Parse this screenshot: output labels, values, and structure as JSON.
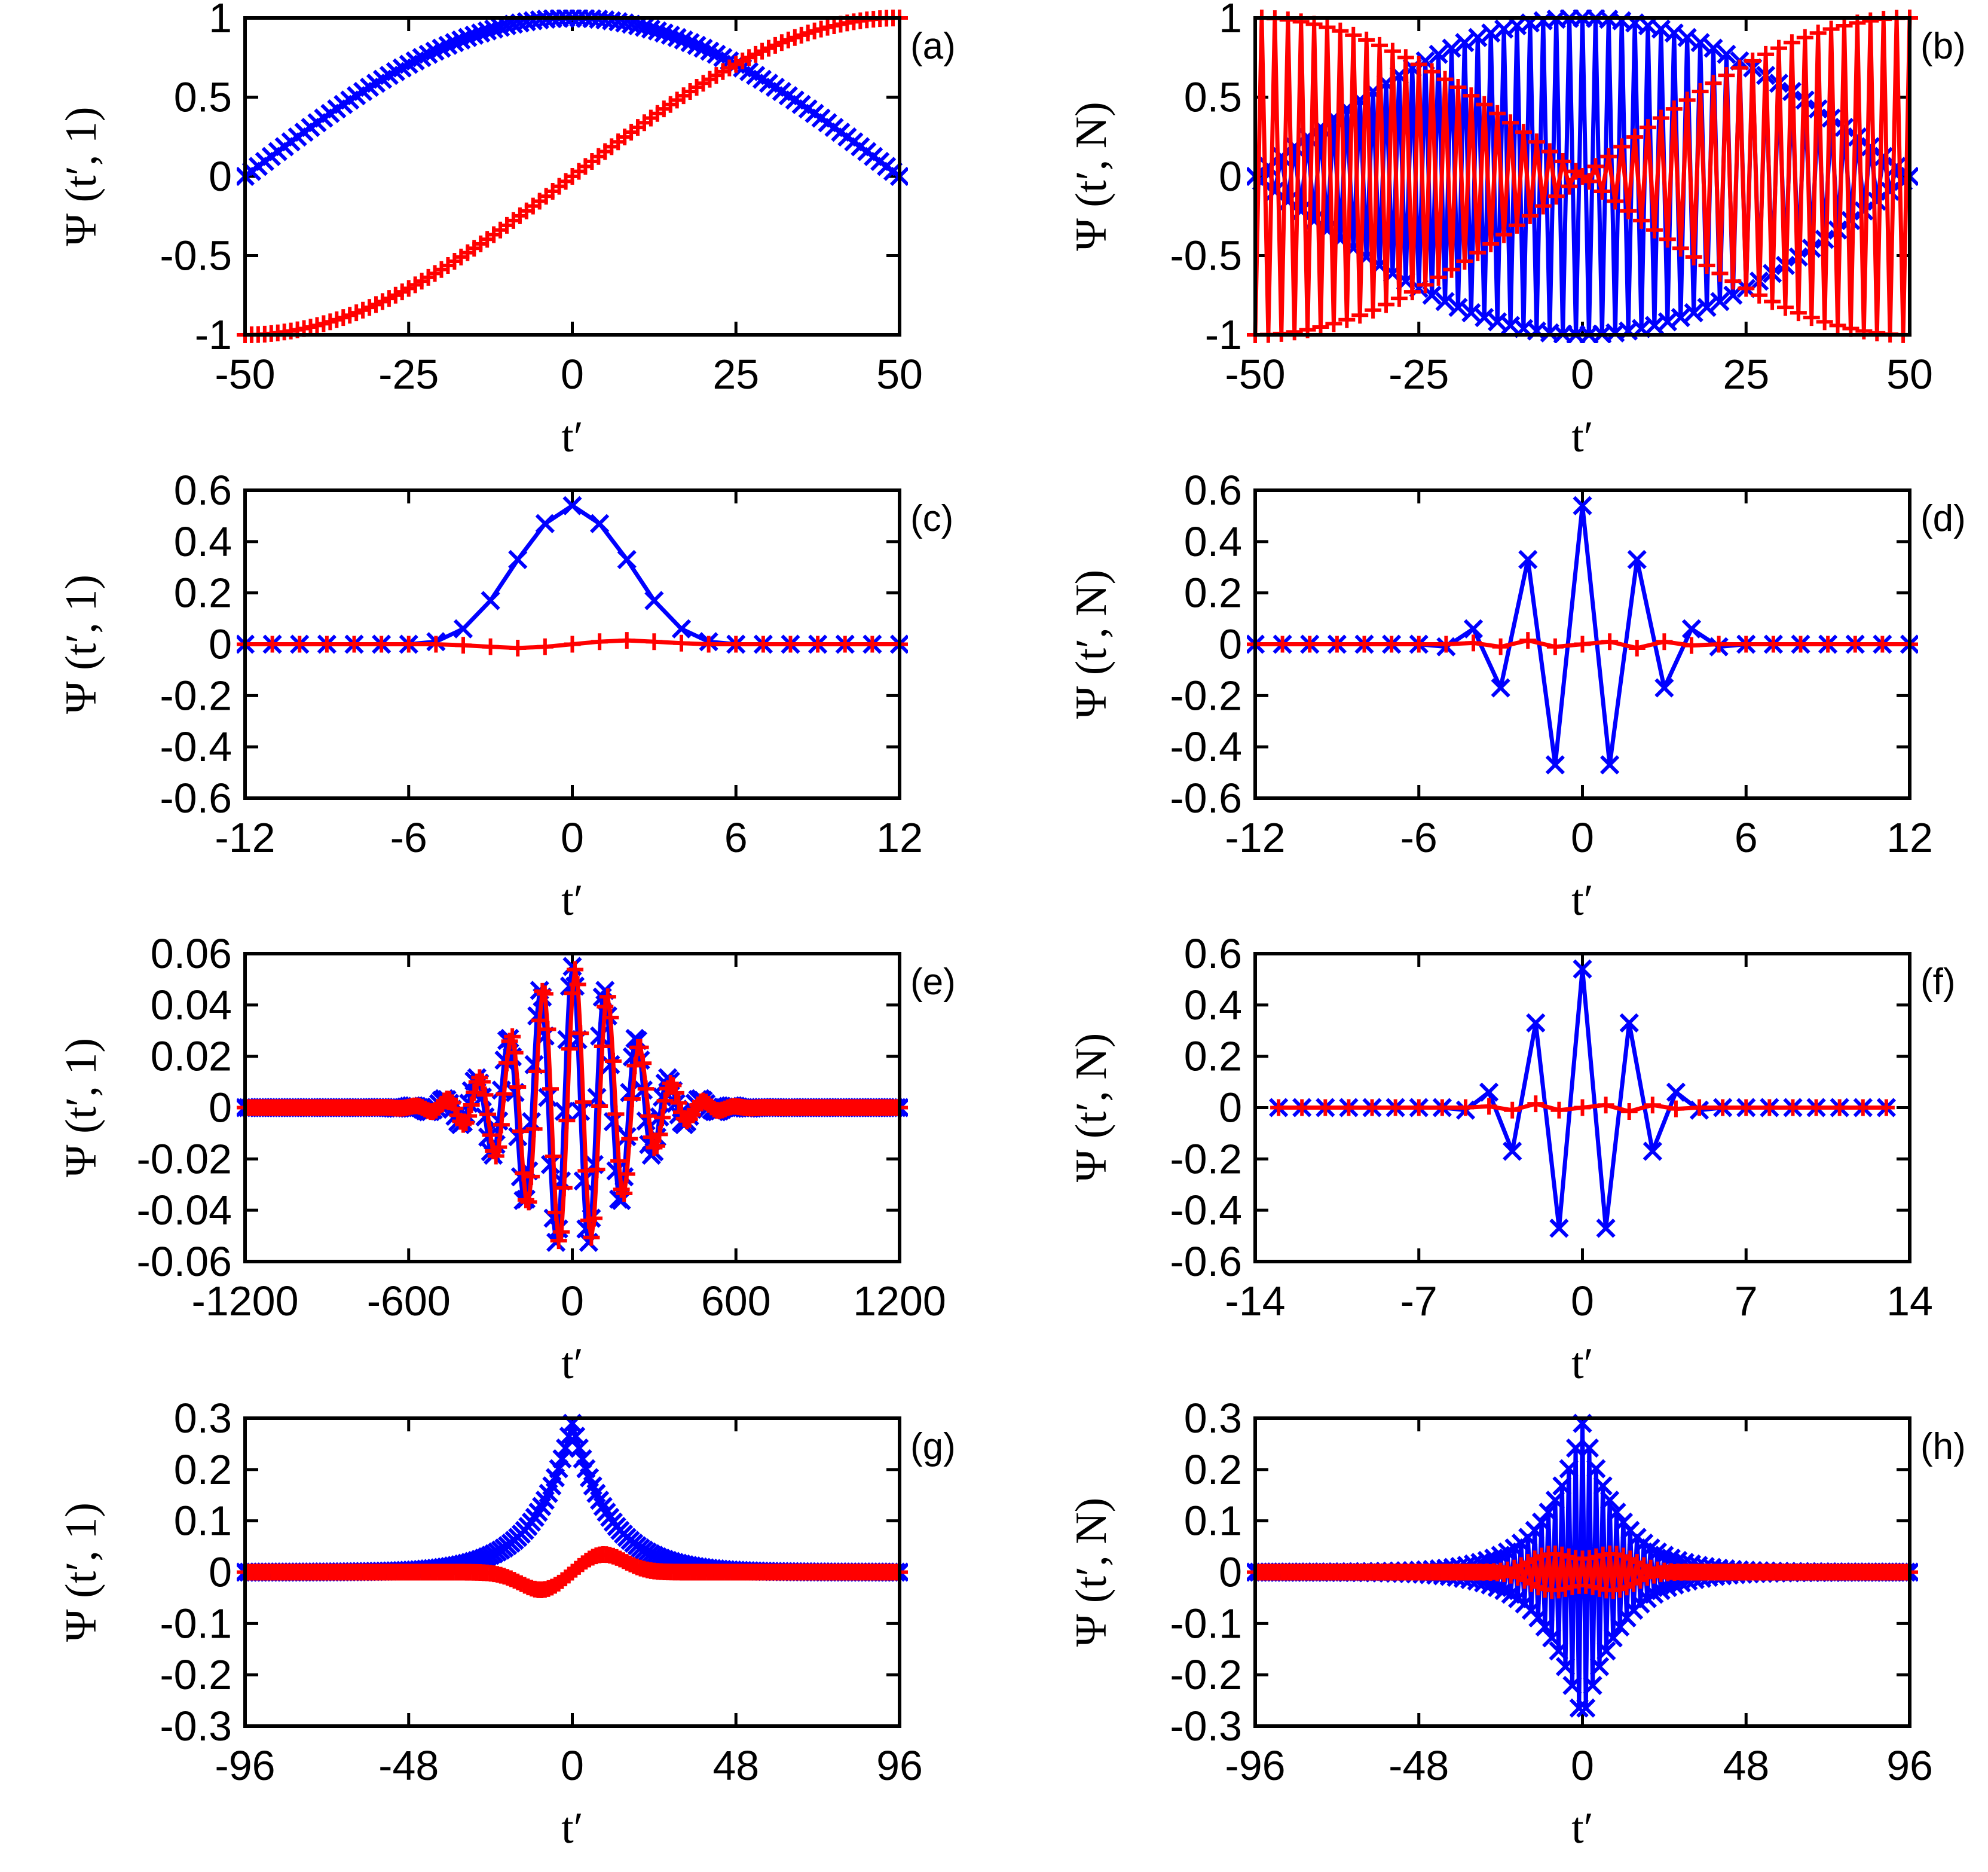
{
  "chart_data": [
    {
      "id": "a",
      "panel_label": "(a)",
      "type": "line",
      "xlabel": "t′",
      "ylabel": "Ψ (t′, 1)",
      "xlim": [
        -50,
        50
      ],
      "ylim": [
        -1,
        1
      ],
      "xticks": [
        -50,
        -25,
        0,
        25,
        50
      ],
      "xtick_labels": [
        "-50",
        "-25",
        "0",
        "25",
        "50"
      ],
      "yticks": [
        -1,
        -0.5,
        0,
        0.5,
        1
      ],
      "ytick_labels": [
        "-1",
        "-0.5",
        "0",
        "0.5",
        "1"
      ],
      "series": [
        {
          "name": "blue-x",
          "color": "#0000ff",
          "marker": "x",
          "samples": 101,
          "kind": "cos_arch",
          "k": 1,
          "markers_only": true
        },
        {
          "name": "red-plus",
          "color": "#ff0000",
          "marker": "+",
          "samples": 101,
          "kind": "sin_ramp",
          "k": 1,
          "markers_only": true
        }
      ]
    },
    {
      "id": "b",
      "panel_label": "(b)",
      "type": "line",
      "xlabel": "t′",
      "ylabel": "Ψ (t′, N)",
      "xlim": [
        -50,
        50
      ],
      "ylim": [
        -1,
        1
      ],
      "xticks": [
        -50,
        -25,
        0,
        25,
        50
      ],
      "xtick_labels": [
        "-50",
        "-25",
        "0",
        "25",
        "50"
      ],
      "yticks": [
        -1,
        -0.5,
        0,
        0.5,
        1
      ],
      "ytick_labels": [
        "-1",
        "-0.5",
        "0",
        "0.5",
        "1"
      ],
      "series": [
        {
          "name": "blue-x",
          "color": "#0000ff",
          "marker": "x",
          "samples": 101,
          "kind": "alt_cos",
          "k": 1
        },
        {
          "name": "red-plus",
          "color": "#ff0000",
          "marker": "+",
          "samples": 101,
          "kind": "alt_sin",
          "k": 1
        }
      ]
    },
    {
      "id": "c",
      "panel_label": "(c)",
      "type": "line",
      "xlabel": "t′",
      "ylabel": "Ψ (t′, 1)",
      "xlim": [
        -12,
        12
      ],
      "ylim": [
        -0.6,
        0.6
      ],
      "xticks": [
        -12,
        -6,
        0,
        6,
        12
      ],
      "xtick_labels": [
        "-12",
        "-6",
        "0",
        "6",
        "12"
      ],
      "yticks": [
        -0.6,
        -0.4,
        -0.2,
        0,
        0.2,
        0.4,
        0.6
      ],
      "ytick_labels": [
        "-0.6",
        "-0.4",
        "-0.2",
        "0",
        "0.2",
        "0.4",
        "0.6"
      ],
      "series": [
        {
          "name": "blue-x",
          "color": "#0000ff",
          "marker": "x",
          "x": [
            -12,
            -11,
            -10,
            -9,
            -8,
            -7,
            -6,
            -5,
            -4,
            -3,
            -2,
            -1,
            0,
            1,
            2,
            3,
            4,
            5,
            6,
            7,
            8,
            9,
            10,
            11,
            12
          ],
          "y": [
            0,
            0,
            0,
            0,
            0,
            0,
            0,
            0.01,
            0.06,
            0.17,
            0.33,
            0.47,
            0.54,
            0.47,
            0.33,
            0.17,
            0.06,
            0.01,
            0,
            0,
            0,
            0,
            0,
            0,
            0
          ]
        },
        {
          "name": "red-plus",
          "color": "#ff0000",
          "marker": "+",
          "x": [
            -12,
            -11,
            -10,
            -9,
            -8,
            -7,
            -6,
            -5,
            -4,
            -3,
            -2,
            -1,
            0,
            1,
            2,
            3,
            4,
            5,
            6,
            7,
            8,
            9,
            10,
            11,
            12
          ],
          "y": [
            0,
            0,
            0,
            0,
            0,
            0,
            0,
            0,
            -0.004,
            -0.01,
            -0.015,
            -0.01,
            0,
            0.01,
            0.015,
            0.01,
            0.004,
            0,
            0,
            0,
            0,
            0,
            0,
            0,
            0
          ]
        }
      ]
    },
    {
      "id": "d",
      "panel_label": "(d)",
      "type": "line",
      "xlabel": "t′",
      "ylabel": "Ψ (t′, N)",
      "xlim": [
        -12,
        12
      ],
      "ylim": [
        -0.6,
        0.6
      ],
      "xticks": [
        -12,
        -6,
        0,
        6,
        12
      ],
      "xtick_labels": [
        "-12",
        "-6",
        "0",
        "6",
        "12"
      ],
      "yticks": [
        -0.6,
        -0.4,
        -0.2,
        0,
        0.2,
        0.4,
        0.6
      ],
      "ytick_labels": [
        "-0.6",
        "-0.4",
        "-0.2",
        "0",
        "0.2",
        "0.4",
        "0.6"
      ],
      "series": [
        {
          "name": "blue-x",
          "color": "#0000ff",
          "marker": "x",
          "x": [
            -12,
            -11,
            -10,
            -9,
            -8,
            -7,
            -6,
            -5,
            -4,
            -3,
            -2,
            -1,
            0,
            1,
            2,
            3,
            4,
            5,
            6,
            7,
            8,
            9,
            10,
            11,
            12
          ],
          "y": [
            0,
            0,
            0,
            0,
            0,
            0,
            0,
            -0.01,
            0.06,
            -0.17,
            0.33,
            -0.47,
            0.54,
            -0.47,
            0.33,
            -0.17,
            0.06,
            -0.01,
            0,
            0,
            0,
            0,
            0,
            0,
            0
          ]
        },
        {
          "name": "red-plus",
          "color": "#ff0000",
          "marker": "+",
          "x": [
            -12,
            -11,
            -10,
            -9,
            -8,
            -7,
            -6,
            -5,
            -4,
            -3,
            -2,
            -1,
            0,
            1,
            2,
            3,
            4,
            5,
            6,
            7,
            8,
            9,
            10,
            11,
            12
          ],
          "y": [
            0,
            0,
            0,
            0,
            0,
            0,
            0,
            0,
            0.005,
            -0.01,
            0.015,
            -0.01,
            0,
            0.01,
            -0.015,
            0.01,
            -0.005,
            0,
            0,
            0,
            0,
            0,
            0,
            0,
            0
          ]
        }
      ]
    },
    {
      "id": "e",
      "panel_label": "(e)",
      "type": "line",
      "xlabel": "t′",
      "ylabel": "Ψ (t′, 1)",
      "xlim": [
        -1200,
        1200
      ],
      "ylim": [
        -0.06,
        0.06
      ],
      "xticks": [
        -1200,
        -600,
        0,
        600,
        1200
      ],
      "xtick_labels": [
        "-1200",
        "-600",
        "0",
        "600",
        "1200"
      ],
      "yticks": [
        -0.06,
        -0.04,
        -0.02,
        0,
        0.02,
        0.04,
        0.06
      ],
      "ytick_labels": [
        "-0.06",
        "-0.04",
        "-0.02",
        "0",
        "0.02",
        "0.04",
        "0.06"
      ],
      "series": [
        {
          "name": "blue-x",
          "color": "#0000ff",
          "marker": "x",
          "samples": 241,
          "kind": "gauss_wave",
          "amp": 0.055,
          "sigma": 200,
          "period": 118,
          "phase": 0
        },
        {
          "name": "red-plus",
          "color": "#ff0000",
          "marker": "+",
          "samples": 241,
          "kind": "gauss_wave",
          "amp": 0.054,
          "sigma": 195,
          "period": 118,
          "phase": -0.6
        }
      ]
    },
    {
      "id": "f",
      "panel_label": "(f)",
      "type": "line",
      "xlabel": "t′",
      "ylabel": "Ψ (t′, N)",
      "xlim": [
        -14,
        14
      ],
      "ylim": [
        -0.6,
        0.6
      ],
      "xticks": [
        -14,
        -7,
        0,
        7,
        14
      ],
      "xtick_labels": [
        "-14",
        "-7",
        "0",
        "7",
        "14"
      ],
      "yticks": [
        -0.6,
        -0.4,
        -0.2,
        0,
        0.2,
        0.4,
        0.6
      ],
      "ytick_labels": [
        "-0.6",
        "-0.4",
        "-0.2",
        "0",
        "0.2",
        "0.4",
        "0.6"
      ],
      "series": [
        {
          "name": "blue-x",
          "color": "#0000ff",
          "marker": "x",
          "x": [
            -13,
            -12,
            -11,
            -10,
            -9,
            -8,
            -7,
            -6,
            -5,
            -4,
            -3,
            -2,
            -1,
            0,
            1,
            2,
            3,
            4,
            5,
            6,
            7,
            8,
            9,
            10,
            11,
            12,
            13
          ],
          "y": [
            0,
            0,
            0,
            0,
            0,
            0,
            0,
            0,
            -0.01,
            0.06,
            -0.17,
            0.33,
            -0.47,
            0.54,
            -0.47,
            0.33,
            -0.17,
            0.06,
            -0.01,
            0,
            0,
            0,
            0,
            0,
            0,
            0,
            0
          ]
        },
        {
          "name": "red-plus",
          "color": "#ff0000",
          "marker": "+",
          "x": [
            -13,
            -12,
            -11,
            -10,
            -9,
            -8,
            -7,
            -6,
            -5,
            -4,
            -3,
            -2,
            -1,
            0,
            1,
            2,
            3,
            4,
            5,
            6,
            7,
            8,
            9,
            10,
            11,
            12,
            13
          ],
          "y": [
            0,
            0,
            0,
            0,
            0,
            0,
            0,
            0,
            0,
            0.005,
            -0.01,
            0.015,
            -0.01,
            0,
            0.01,
            -0.015,
            0.01,
            -0.005,
            0,
            0,
            0,
            0,
            0,
            0,
            0,
            0,
            0
          ]
        }
      ]
    },
    {
      "id": "g",
      "panel_label": "(g)",
      "type": "line",
      "xlabel": "t′",
      "ylabel": "Ψ (t′, 1)",
      "xlim": [
        -96,
        96
      ],
      "ylim": [
        -0.3,
        0.3
      ],
      "xticks": [
        -96,
        -48,
        0,
        48,
        96
      ],
      "xtick_labels": [
        "-96",
        "-48",
        "0",
        "48",
        "96"
      ],
      "yticks": [
        -0.3,
        -0.2,
        -0.1,
        0,
        0.1,
        0.2,
        0.3
      ],
      "ytick_labels": [
        "-0.3",
        "-0.2",
        "-0.1",
        "0",
        "0.1",
        "0.2",
        "0.3"
      ],
      "series": [
        {
          "name": "blue-x",
          "color": "#0000ff",
          "marker": "x",
          "samples": 193,
          "kind": "cusp",
          "amp": 0.29,
          "decay": 11
        },
        {
          "name": "red-plus",
          "color": "#ff0000",
          "marker": "+",
          "samples": 193,
          "kind": "dip_bump",
          "amp": 0.035,
          "center": 9,
          "width": 9
        }
      ]
    },
    {
      "id": "h",
      "panel_label": "(h)",
      "type": "line",
      "xlabel": "t′",
      "ylabel": "Ψ (t′, N)",
      "xlim": [
        -96,
        96
      ],
      "ylim": [
        -0.3,
        0.3
      ],
      "xticks": [
        -96,
        -48,
        0,
        48,
        96
      ],
      "xtick_labels": [
        "-96",
        "-48",
        "0",
        "48",
        "96"
      ],
      "yticks": [
        -0.3,
        -0.2,
        -0.1,
        0,
        0.1,
        0.2,
        0.3
      ],
      "ytick_labels": [
        "-0.3",
        "-0.2",
        "-0.1",
        "0",
        "0.1",
        "0.2",
        "0.3"
      ],
      "series": [
        {
          "name": "blue-x",
          "color": "#0000ff",
          "marker": "x",
          "samples": 193,
          "kind": "alt_cusp",
          "amp": 0.29,
          "decay": 11
        },
        {
          "name": "red-plus",
          "color": "#ff0000",
          "marker": "+",
          "samples": 193,
          "kind": "alt_dip_bump",
          "amp": 0.035,
          "center": 9,
          "width": 9
        }
      ]
    }
  ]
}
